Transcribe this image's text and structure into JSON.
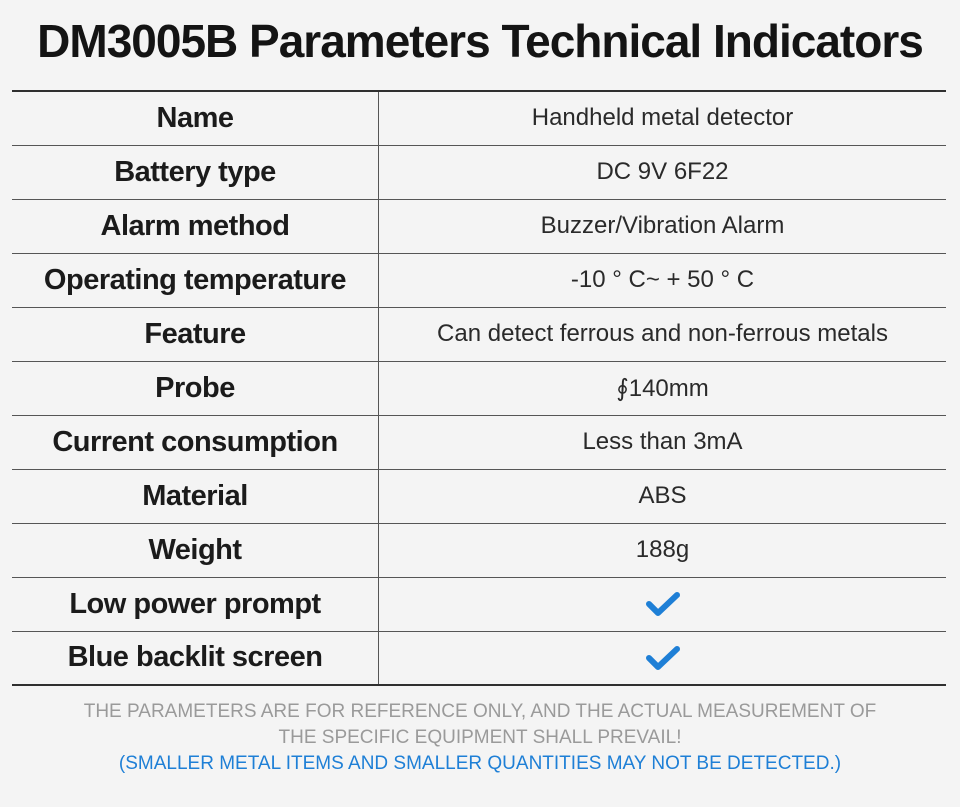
{
  "title": "DM3005B Parameters Technical Indicators",
  "rows": [
    {
      "label": "Name",
      "value": "Handheld metal detector"
    },
    {
      "label": "Battery type",
      "value": "DC 9V 6F22"
    },
    {
      "label": "Alarm method",
      "value": "Buzzer/Vibration Alarm"
    },
    {
      "label": "Operating temperature",
      "value": "-10 ° C~ + 50 ° C"
    },
    {
      "label": "Feature",
      "value": "Can detect ferrous and non-ferrous metals"
    },
    {
      "label": "Probe",
      "value": "∮140mm"
    },
    {
      "label": "Current consumption",
      "value": "Less than 3mA"
    },
    {
      "label": "Material",
      "value": "ABS"
    },
    {
      "label": "Weight",
      "value": "188g"
    },
    {
      "label": "Low power prompt",
      "value_icon": "checkmark-icon"
    },
    {
      "label": "Blue backlit screen",
      "value_icon": "checkmark-icon"
    }
  ],
  "check_color": "#1e7fd6",
  "notes": {
    "line1": "THE PARAMETERS ARE FOR REFERENCE ONLY, AND THE ACTUAL MEASUREMENT OF",
    "line2": "THE SPECIFIC EQUIPMENT SHALL PREVAIL!",
    "line3": "(SMALLER METAL ITEMS AND SMALLER QUANTITIES MAY NOT BE DETECTED.)"
  }
}
